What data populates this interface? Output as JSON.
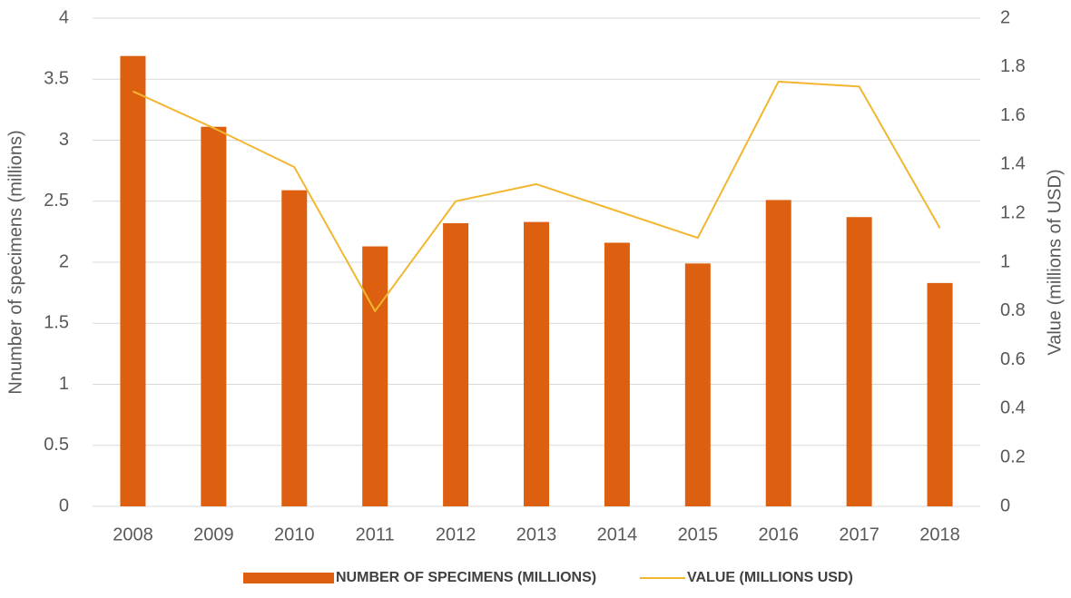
{
  "chart_data": {
    "type": "bar-line",
    "categories": [
      "2008",
      "2009",
      "2010",
      "2011",
      "2012",
      "2013",
      "2014",
      "2015",
      "2016",
      "2017",
      "2018"
    ],
    "series": [
      {
        "name": "NUMBER OF SPECIMENS (MILLIONS)",
        "color": "#dd6010",
        "type": "bar",
        "values": [
          3.69,
          3.11,
          2.59,
          2.13,
          2.32,
          2.33,
          2.16,
          1.99,
          2.51,
          2.37,
          1.83
        ]
      },
      {
        "name": "VALUE (MILLIONS USD)",
        "color": "#f2b630",
        "type": "line",
        "axis": "y2",
        "values": [
          1.7,
          1.55,
          1.39,
          0.8,
          1.25,
          1.32,
          1.21,
          1.1,
          1.74,
          1.72,
          1.14
        ]
      }
    ],
    "ylabel": "Nnumber of specimens (millions)",
    "y2label": "Value (millions of USD)",
    "ylim": [
      0,
      4
    ],
    "yticks": [
      0,
      0.5,
      1,
      1.5,
      2,
      2.5,
      3,
      3.5,
      4
    ],
    "y2lim": [
      0,
      2
    ],
    "y2ticks": [
      0,
      0.2,
      0.4,
      0.6,
      0.8,
      1,
      1.2,
      1.4,
      1.6,
      1.8,
      2
    ],
    "grid": true,
    "legend": "bottom"
  }
}
